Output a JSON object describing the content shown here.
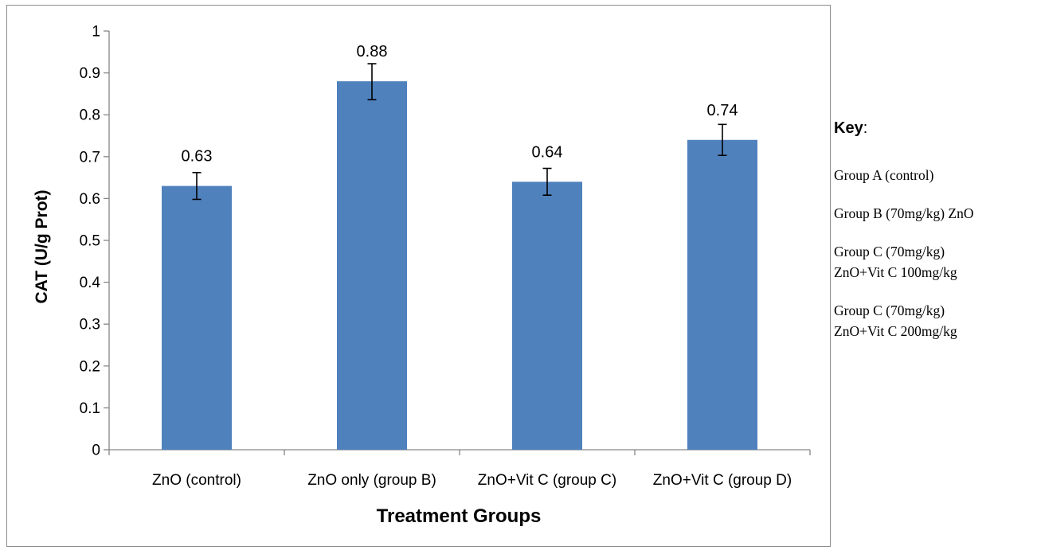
{
  "chart_data": {
    "type": "bar",
    "categories": [
      "ZnO (control)",
      "ZnO only (group B)",
      "ZnO+Vit C (group C)",
      "ZnO+Vit C (group D)"
    ],
    "values": [
      0.63,
      0.88,
      0.64,
      0.74
    ],
    "data_labels": [
      "0.63",
      "0.88",
      "0.64",
      "0.74"
    ],
    "error_bars": [
      [
        0.598,
        0.662
      ],
      [
        0.836,
        0.922
      ],
      [
        0.608,
        0.672
      ],
      [
        0.703,
        0.777
      ]
    ],
    "xlabel": "Treatment Groups",
    "ylabel": "CAT (U/g Prot)",
    "ylim": [
      0,
      1
    ],
    "yticks": [
      "0",
      "0.1",
      "0.2",
      "0.3",
      "0.4",
      "0.5",
      "0.6",
      "0.7",
      "0.8",
      "0.9",
      "1"
    ],
    "bar_color": "#4f81bd",
    "grid": false,
    "legend": "none"
  },
  "key": {
    "title": "Key",
    "colon": ":",
    "items": [
      [
        "Group A (control)"
      ],
      [
        "Group B (70mg/kg) ZnO"
      ],
      [
        "Group C (70mg/kg)",
        "ZnO+Vit C 100mg/kg"
      ],
      [
        "Group C (70mg/kg)",
        "ZnO+Vit C 200mg/kg"
      ]
    ]
  }
}
